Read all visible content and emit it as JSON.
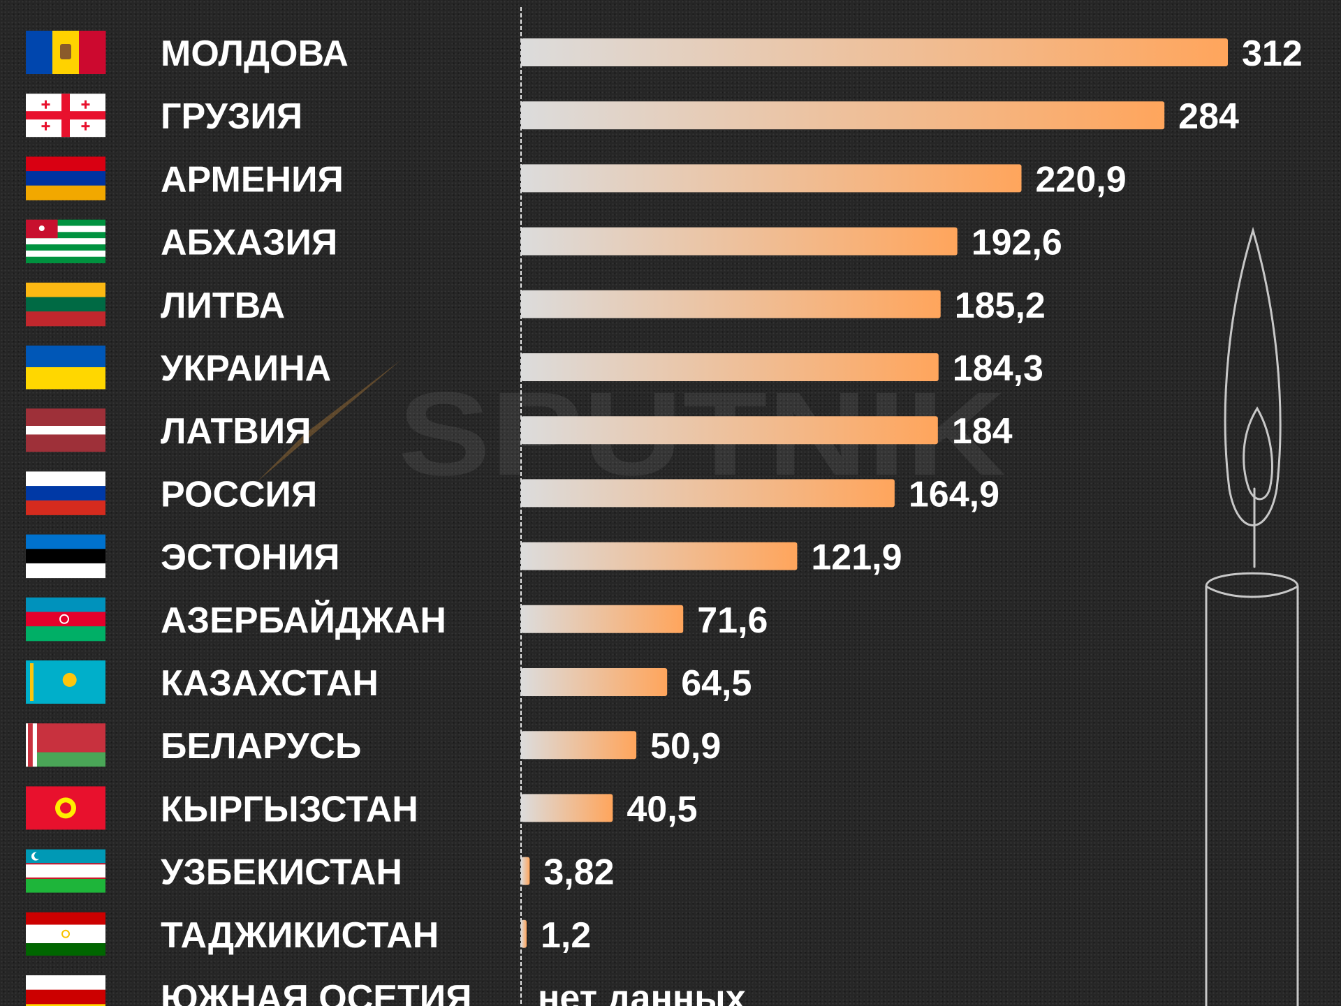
{
  "watermark": "SPUTNIK",
  "chart_data": {
    "type": "bar",
    "orientation": "horizontal",
    "categories": [
      "МОЛДОВА",
      "ГРУЗИЯ",
      "АРМЕНИЯ",
      "АБХАЗИЯ",
      "ЛИТВА",
      "УКРАИНА",
      "ЛАТВИЯ",
      "РОССИЯ",
      "ЭСТОНИЯ",
      "АЗЕРБАЙДЖАН",
      "КАЗАХСТАН",
      "БЕЛАРУСЬ",
      "КЫРГЫЗСТАН",
      "УЗБЕКИСТАН",
      "ТАДЖИКИСТАН",
      "ЮЖНАЯ ОСЕТИЯ"
    ],
    "values": [
      312,
      284,
      220.9,
      192.6,
      185.2,
      184.3,
      184,
      164.9,
      121.9,
      71.6,
      64.5,
      50.9,
      40.5,
      3.82,
      1.2,
      null
    ],
    "value_labels": [
      "312",
      "284",
      "220,9",
      "192,6",
      "185,2",
      "184,3",
      "184",
      "164,9",
      "121,9",
      "71,6",
      "64,5",
      "50,9",
      "40,5",
      "3,82",
      "1,2",
      "нет данных"
    ],
    "xlim": [
      0,
      312
    ],
    "grid": false,
    "bar_gradient": {
      "start": "#dcdcdc",
      "end": "#ffa55c"
    },
    "background": "#262626",
    "flags": [
      {
        "country": "МОЛДОВА",
        "type": "vertical",
        "colors": [
          "#0046ae",
          "#ffd200",
          "#cc092f"
        ],
        "emblem": "#8a5a2b"
      },
      {
        "country": "ГРУЗИЯ",
        "type": "georgia",
        "colors": [
          "#ffffff",
          "#e8112d"
        ]
      },
      {
        "country": "АРМЕНИЯ",
        "type": "horizontal",
        "colors": [
          "#d90012",
          "#0033a0",
          "#f2a800"
        ]
      },
      {
        "country": "АБХАЗИЯ",
        "type": "abkhazia",
        "colors": [
          "#ffffff",
          "#00923f",
          "#c8102e"
        ]
      },
      {
        "country": "ЛИТВА",
        "type": "horizontal",
        "colors": [
          "#fdb913",
          "#006a44",
          "#c1272d"
        ]
      },
      {
        "country": "УКРАИНА",
        "type": "horizontal",
        "colors": [
          "#0057b7",
          "#ffd700"
        ]
      },
      {
        "country": "ЛАТВИЯ",
        "type": "latvia",
        "colors": [
          "#9e3039",
          "#ffffff"
        ]
      },
      {
        "country": "РОССИЯ",
        "type": "horizontal",
        "colors": [
          "#ffffff",
          "#0039a6",
          "#d52b1e"
        ]
      },
      {
        "country": "ЭСТОНИЯ",
        "type": "horizontal",
        "colors": [
          "#0072ce",
          "#000000",
          "#ffffff"
        ]
      },
      {
        "country": "АЗЕРБАЙДЖАН",
        "type": "horizontal",
        "colors": [
          "#0092bc",
          "#e4002b",
          "#00af66"
        ],
        "emblem": "#ffffff"
      },
      {
        "country": "КАЗАХСТАН",
        "type": "kazakhstan",
        "colors": [
          "#00afca",
          "#fec50c"
        ]
      },
      {
        "country": "БЕЛАРУСЬ",
        "type": "belarus",
        "colors": [
          "#c8313e",
          "#4aa657",
          "#ffffff"
        ]
      },
      {
        "country": "КЫРГЫЗСТАН",
        "type": "kyrgyzstan",
        "colors": [
          "#e8112d",
          "#ffef00"
        ]
      },
      {
        "country": "УЗБЕКИСТАН",
        "type": "uzbekistan",
        "colors": [
          "#0099b5",
          "#ffffff",
          "#1eb53a",
          "#ce1126"
        ]
      },
      {
        "country": "ТАДЖИКИСТАН",
        "type": "tajikistan",
        "colors": [
          "#cc0000",
          "#ffffff",
          "#006600",
          "#f8c300"
        ]
      },
      {
        "country": "ЮЖНАЯ ОСЕТИЯ",
        "type": "horizontal",
        "colors": [
          "#ffffff",
          "#cc0000",
          "#ffd700"
        ]
      }
    ]
  }
}
